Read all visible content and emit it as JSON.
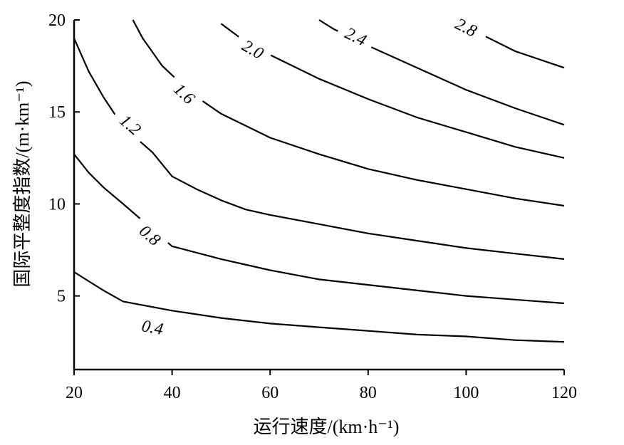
{
  "chart_data": {
    "type": "line",
    "xlabel": "运行速度/(km·h⁻¹)",
    "ylabel": "国际平整度指数/(m·km⁻¹)",
    "xlim": [
      20,
      120
    ],
    "ylim": [
      1,
      20
    ],
    "x_ticks": [
      20,
      40,
      60,
      80,
      100,
      120
    ],
    "y_ticks": [
      5,
      10,
      15,
      20
    ],
    "grid": false,
    "series": [
      {
        "name": "0.4",
        "points": [
          [
            20,
            6.3
          ],
          [
            23,
            5.8
          ],
          [
            26,
            5.3
          ],
          [
            30,
            4.7
          ],
          [
            40,
            4.2
          ],
          [
            50,
            3.8
          ],
          [
            60,
            3.5
          ],
          [
            70,
            3.3
          ],
          [
            80,
            3.1
          ],
          [
            90,
            2.9
          ],
          [
            100,
            2.8
          ],
          [
            110,
            2.6
          ],
          [
            120,
            2.5
          ]
        ],
        "label_x": 36,
        "label_y": 3.3
      },
      {
        "name": "0.8",
        "points": [
          [
            20,
            12.7
          ],
          [
            23,
            11.7
          ],
          [
            26,
            10.9
          ],
          [
            30,
            10.0
          ],
          [
            40,
            7.7
          ],
          [
            50,
            7.0
          ],
          [
            60,
            6.4
          ],
          [
            70,
            5.9
          ],
          [
            80,
            5.6
          ],
          [
            90,
            5.3
          ],
          [
            100,
            5.0
          ],
          [
            110,
            4.8
          ],
          [
            120,
            4.6
          ]
        ],
        "label_x": 35.5,
        "label_y": 8.3
      },
      {
        "name": "1.2",
        "points": [
          [
            20,
            19.0
          ],
          [
            23,
            17.2
          ],
          [
            26,
            15.8
          ],
          [
            30,
            14.2
          ],
          [
            36,
            12.8
          ],
          [
            40,
            11.5
          ],
          [
            45,
            10.8
          ],
          [
            50,
            10.2
          ],
          [
            55,
            9.7
          ],
          [
            60,
            9.4
          ],
          [
            70,
            8.9
          ],
          [
            80,
            8.4
          ],
          [
            90,
            8.0
          ],
          [
            100,
            7.6
          ],
          [
            110,
            7.3
          ],
          [
            120,
            7.0
          ]
        ],
        "label_x": 31.5,
        "label_y": 14.3
      },
      {
        "name": "1.6",
        "points": [
          [
            32,
            20.0
          ],
          [
            34,
            19.0
          ],
          [
            38,
            17.5
          ],
          [
            44,
            16.0
          ],
          [
            50,
            14.9
          ],
          [
            60,
            13.6
          ],
          [
            70,
            12.7
          ],
          [
            80,
            11.9
          ],
          [
            90,
            11.3
          ],
          [
            100,
            10.8
          ],
          [
            110,
            10.3
          ],
          [
            120,
            9.9
          ]
        ],
        "label_x": 42.5,
        "label_y": 16.0
      },
      {
        "name": "2.0",
        "points": [
          [
            50,
            19.8
          ],
          [
            54,
            19.0
          ],
          [
            60,
            18.1
          ],
          [
            70,
            16.8
          ],
          [
            80,
            15.7
          ],
          [
            90,
            14.7
          ],
          [
            100,
            13.9
          ],
          [
            110,
            13.1
          ],
          [
            120,
            12.5
          ]
        ],
        "label_x": 56.5,
        "label_y": 18.4
      },
      {
        "name": "2.4",
        "points": [
          [
            70,
            20.0
          ],
          [
            73,
            19.5
          ],
          [
            80,
            18.6
          ],
          [
            90,
            17.4
          ],
          [
            100,
            16.2
          ],
          [
            110,
            15.2
          ],
          [
            120,
            14.3
          ]
        ],
        "label_x": 77.5,
        "label_y": 19.1
      },
      {
        "name": "2.8",
        "points": [
          [
            104,
            19.1
          ],
          [
            110,
            18.3
          ],
          [
            120,
            17.4
          ]
        ],
        "label_x": 100,
        "label_y": 19.6
      }
    ]
  }
}
